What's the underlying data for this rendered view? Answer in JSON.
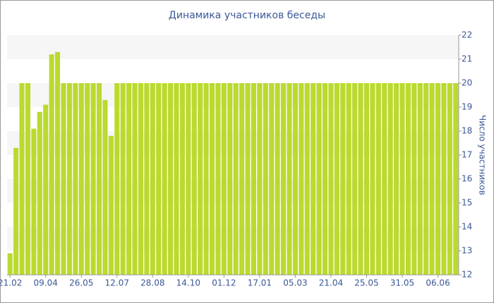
{
  "chart_data": {
    "type": "bar",
    "title": "Динамика участников беседы",
    "y_label": "Число участников",
    "categories": [
      "21.02",
      null,
      null,
      null,
      null,
      null,
      "09.04",
      null,
      null,
      null,
      null,
      null,
      "26.05",
      null,
      null,
      null,
      null,
      null,
      "12.07",
      null,
      null,
      null,
      null,
      null,
      "28.08",
      null,
      null,
      null,
      null,
      null,
      "14.10",
      null,
      null,
      null,
      null,
      null,
      "01.12",
      null,
      null,
      null,
      null,
      null,
      "17.01",
      null,
      null,
      null,
      null,
      null,
      "05.03",
      null,
      null,
      null,
      null,
      null,
      "21.04",
      null,
      null,
      null,
      null,
      null,
      "25.05",
      null,
      null,
      null,
      null,
      null,
      "31.05",
      null,
      null,
      null,
      null,
      null,
      "06.06",
      null,
      null,
      null
    ],
    "values": [
      12.9,
      17.3,
      20,
      20,
      18.1,
      18.8,
      19.1,
      21.2,
      21.3,
      20,
      20,
      20,
      20,
      20,
      20,
      20,
      19.3,
      17.8,
      20,
      20,
      20,
      20,
      20,
      20,
      20,
      20,
      20,
      20,
      20,
      20,
      20,
      20,
      20,
      20,
      20,
      20,
      20,
      20,
      20,
      20,
      20,
      20,
      20,
      20,
      20,
      20,
      20,
      20,
      20,
      20,
      20,
      20,
      20,
      20,
      20,
      20,
      20,
      20,
      20,
      20,
      20,
      20,
      20,
      20,
      20,
      20,
      20,
      20,
      20,
      20,
      20,
      20,
      20,
      20,
      20,
      20
    ],
    "color": "#bada2e",
    "ylim": [
      12,
      22
    ],
    "yticks": [
      12,
      13,
      14,
      15,
      16,
      17,
      18,
      19,
      20,
      21,
      22
    ],
    "grid": true,
    "y_axis_side": "right"
  }
}
